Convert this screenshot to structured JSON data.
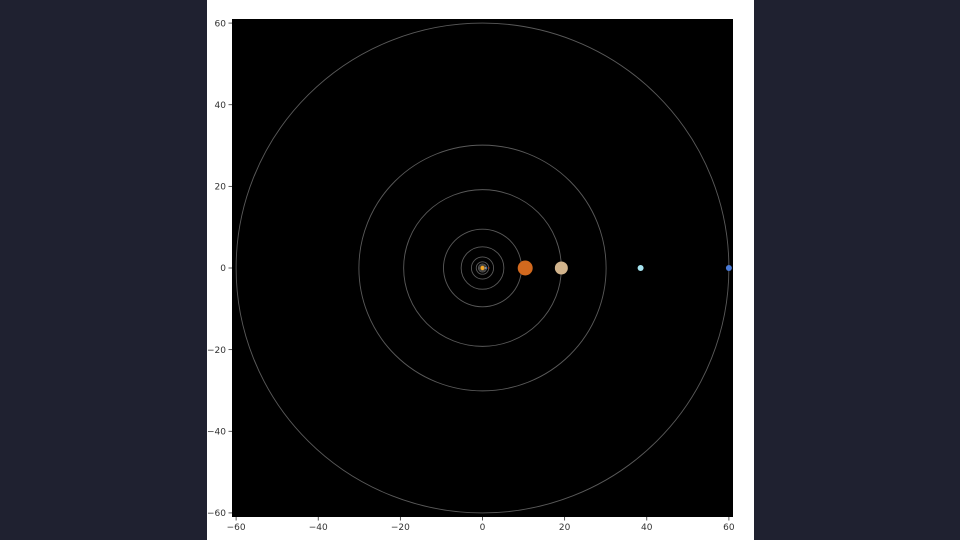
{
  "chart_data": {
    "type": "scatter",
    "title": "",
    "xlabel": "",
    "ylabel": "",
    "xlim": [
      -61,
      61
    ],
    "ylim": [
      -61,
      61
    ],
    "grid": false,
    "background": "#000000",
    "aspect": "equal",
    "x_ticks": [
      -60,
      -40,
      -20,
      0,
      20,
      40,
      60
    ],
    "y_ticks": [
      -60,
      -40,
      -20,
      0,
      20,
      40,
      60
    ],
    "x_tick_labels": [
      "−60",
      "−40",
      "−20",
      "0",
      "20",
      "40",
      "60"
    ],
    "y_tick_labels": [
      "−60",
      "−40",
      "−20",
      "0",
      "20",
      "40",
      "60"
    ],
    "orbit_color": "#5a5a5a",
    "orbits": [
      0.4,
      0.72,
      1.0,
      1.52,
      2.7,
      5.2,
      9.5,
      19.2,
      30.1,
      60.0
    ],
    "bodies": [
      {
        "x": 0,
        "y": 0,
        "size": 2.2,
        "color": "#f5a623"
      },
      {
        "x": 0.4,
        "y": 0,
        "size": 0.6,
        "color": "#9a9a9a"
      },
      {
        "x": 0.72,
        "y": 0,
        "size": 0.7,
        "color": "#d8c08a"
      },
      {
        "x": 1.0,
        "y": 0,
        "size": 0.8,
        "color": "#3d7bd6"
      },
      {
        "x": 1.52,
        "y": 0,
        "size": 0.7,
        "color": "#c1440e"
      },
      {
        "x": 10.4,
        "y": 0,
        "size": 7.5,
        "color": "#d2691e"
      },
      {
        "x": 19.2,
        "y": 0,
        "size": 6.5,
        "color": "#d2b48c"
      },
      {
        "x": 38.5,
        "y": 0,
        "size": 3.0,
        "color": "#a6e4f0"
      },
      {
        "x": 60.0,
        "y": 0,
        "size": 3.0,
        "color": "#4a7bd8"
      }
    ]
  }
}
